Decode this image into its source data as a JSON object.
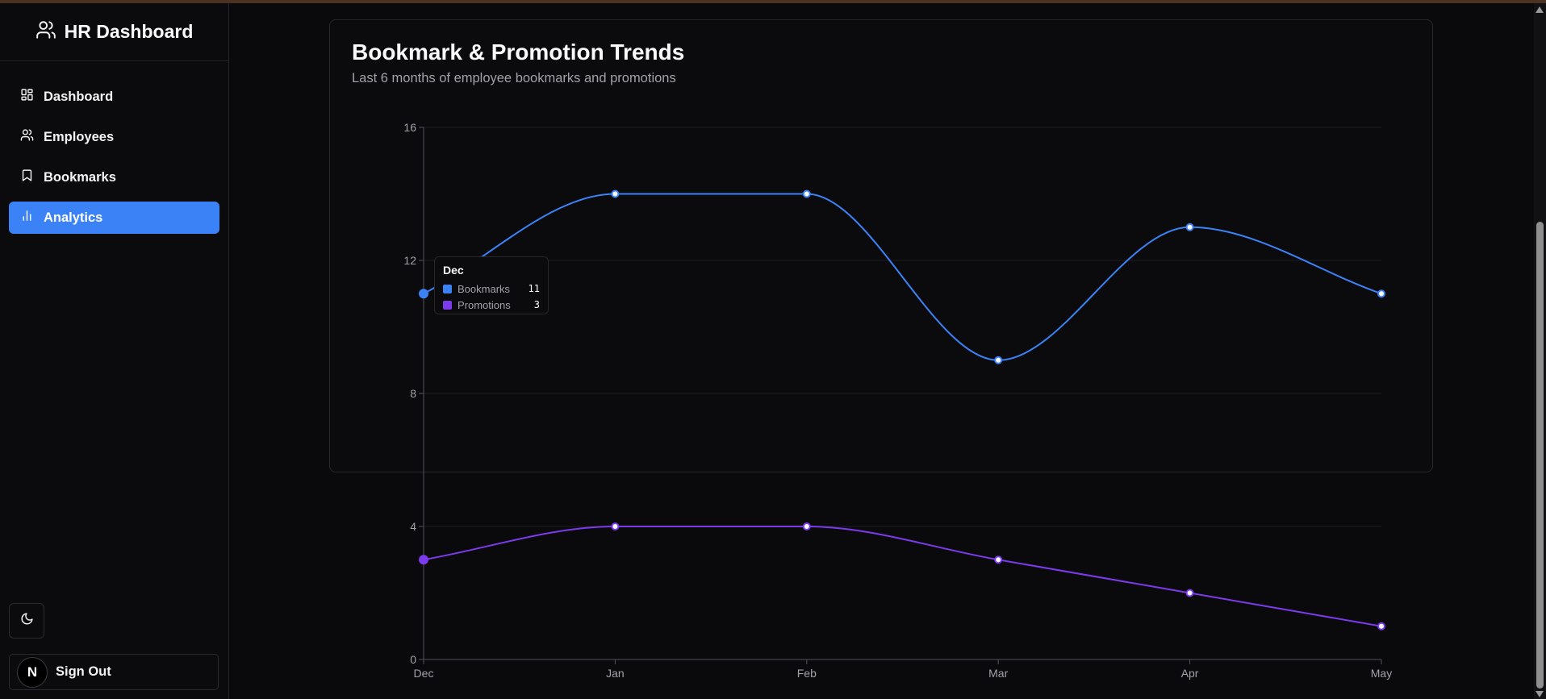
{
  "app": {
    "title": "HR Dashboard",
    "brand_icon": "users-icon"
  },
  "sidebar": {
    "items": [
      {
        "label": "Dashboard",
        "icon": "layout-dashboard-icon",
        "active": false
      },
      {
        "label": "Employees",
        "icon": "users-icon",
        "active": false
      },
      {
        "label": "Bookmarks",
        "icon": "bookmark-icon",
        "active": false
      },
      {
        "label": "Analytics",
        "icon": "bar-chart-icon",
        "active": true
      }
    ],
    "theme_toggle_icon": "moon-icon",
    "avatar_letter": "N",
    "signout_label": "Sign Out"
  },
  "card": {
    "title": "Bookmark & Promotion Trends",
    "subtitle": "Last 6 months of employee bookmarks and promotions"
  },
  "tooltip": {
    "title": "Dec",
    "rows": [
      {
        "label": "Bookmarks",
        "value": "11",
        "color": "#3b82f6"
      },
      {
        "label": "Promotions",
        "value": "3",
        "color": "#7c3aed"
      }
    ]
  },
  "colors": {
    "accent": "#3b82f6",
    "bookmarks": "#3b82f6",
    "promotions": "#7c3aed",
    "grid": "#1e1e22",
    "axis": "#52525b"
  },
  "chart_data": {
    "type": "line",
    "title": "Bookmark & Promotion Trends",
    "subtitle": "Last 6 months of employee bookmarks and promotions",
    "categories": [
      "Dec",
      "Jan",
      "Feb",
      "Mar",
      "Apr",
      "May"
    ],
    "series": [
      {
        "name": "Bookmarks",
        "values": [
          11,
          14,
          14,
          9,
          13,
          11
        ],
        "color": "#3b82f6"
      },
      {
        "name": "Promotions",
        "values": [
          3,
          4,
          4,
          3,
          2,
          1
        ],
        "color": "#7c3aed"
      }
    ],
    "ylim": [
      0,
      16
    ],
    "yticks": [
      0,
      4,
      8,
      12,
      16
    ],
    "grid": true,
    "highlighted_category": "Dec"
  }
}
